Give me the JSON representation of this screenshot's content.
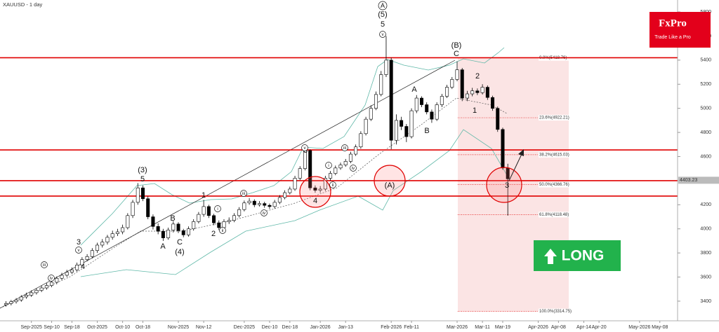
{
  "chart_data": {
    "type": "candlestick",
    "title": "XAUUSD - 1 day",
    "categories": [
      null,
      null,
      null,
      null,
      null,
      "Sep-2025",
      null,
      null,
      null,
      "Sep-10",
      null,
      null,
      null,
      "Sep-18",
      null,
      null,
      null,
      null,
      "Oct-2025",
      null,
      null,
      null,
      null,
      "Oct-10",
      null,
      null,
      null,
      "Oct-18",
      null,
      null,
      null,
      null,
      null,
      null,
      "Nov-2025",
      null,
      null,
      null,
      null,
      "Nov-12",
      null,
      null,
      null,
      null,
      null,
      null,
      null,
      "Dec-2025",
      null,
      null,
      null,
      null,
      "Dec-10",
      null,
      null,
      null,
      "Dec-18",
      null,
      null,
      null,
      null,
      null,
      "Jan-2026",
      null,
      null,
      null,
      null,
      "Jan-13",
      null,
      null,
      null,
      null,
      null,
      null,
      null,
      null,
      "Feb-2026",
      null,
      null,
      null,
      "Feb-11",
      null,
      null,
      null,
      null,
      null,
      null,
      null,
      null,
      "Mar-2026",
      null,
      null,
      null,
      null,
      "Mar-11",
      null,
      null,
      null,
      "Mar-19",
      null,
      null,
      null,
      null,
      null,
      null,
      "Apr-2026",
      null,
      null,
      null,
      "Apr-08",
      null,
      null,
      null,
      null,
      "Apr-14",
      null,
      null,
      "Apr-20",
      null,
      null,
      null,
      null,
      null,
      null,
      null,
      "May-2026",
      null,
      null,
      null,
      "May-08",
      null,
      null,
      null
    ],
    "open": [
      3370,
      3380,
      3395,
      3410,
      3435,
      3450,
      3470,
      3490,
      3510,
      3530,
      3557,
      3590,
      3615,
      3640,
      3660,
      3700,
      3745,
      3770,
      3820,
      3865,
      3890,
      3930,
      3960,
      3975,
      4010,
      4110,
      4220,
      4340,
      4250,
      4100,
      4020,
      3980,
      3925,
      3990,
      4040,
      3985,
      3950,
      4000,
      4060,
      4120,
      4185,
      4110,
      4050,
      4010,
      4060,
      4070,
      4110,
      4160,
      4215,
      4230,
      4200,
      4210,
      4195,
      4185,
      4220,
      4260,
      4300,
      4330,
      4420,
      4500,
      4650,
      4340,
      4320,
      4330,
      4420,
      4460,
      4505,
      4530,
      4560,
      4620,
      4680,
      4790,
      4910,
      5000,
      5115,
      5280,
      5400,
      4735,
      4900,
      4850,
      4765,
      4980,
      5085,
      5030,
      4970,
      4910,
      5030,
      5100,
      5175,
      5240,
      5320,
      5085,
      5120,
      5145,
      5130,
      5175,
      5090,
      5000,
      4825,
      4505,
      null,
      null,
      null,
      null,
      null,
      null,
      null,
      null,
      null,
      null,
      null,
      null,
      null,
      null,
      null,
      null,
      null,
      null,
      null,
      null,
      null,
      null,
      null,
      null,
      null,
      null,
      null,
      null,
      null,
      null,
      null,
      null,
      null
    ],
    "high": [
      3400,
      3410,
      3425,
      3450,
      3470,
      3490,
      3505,
      3530,
      3550,
      3575,
      3605,
      3635,
      3660,
      3680,
      3720,
      3765,
      3790,
      3840,
      3885,
      3915,
      3950,
      3985,
      4000,
      4035,
      4130,
      4240,
      4380,
      4360,
      4270,
      4120,
      4045,
      4000,
      4010,
      4065,
      4055,
      4000,
      4020,
      4080,
      4140,
      4240,
      4200,
      4125,
      4070,
      4080,
      4095,
      4130,
      4180,
      4235,
      4255,
      4245,
      4230,
      4225,
      4210,
      4240,
      4280,
      4320,
      4350,
      4440,
      4520,
      4670,
      4660,
      4360,
      4355,
      4440,
      4480,
      4525,
      4550,
      4580,
      4640,
      4700,
      4810,
      4930,
      5025,
      5140,
      5310,
      5600,
      5420,
      4950,
      4930,
      4870,
      5000,
      5110,
      5100,
      5050,
      4990,
      5050,
      5120,
      5195,
      5260,
      5390,
      5335,
      5145,
      5170,
      5165,
      5200,
      5190,
      5105,
      5015,
      4840,
      4540,
      null,
      null,
      null,
      null,
      null,
      null,
      null,
      null,
      null,
      null,
      null,
      null,
      null,
      null,
      null,
      null,
      null,
      null,
      null,
      null,
      null,
      null,
      null,
      null,
      null,
      null,
      null,
      null,
      null,
      null,
      null,
      null,
      null
    ],
    "low": [
      3355,
      3365,
      3380,
      3395,
      3420,
      3435,
      3455,
      3475,
      3495,
      3515,
      3540,
      3575,
      3600,
      3625,
      3645,
      3685,
      3730,
      3755,
      3800,
      3845,
      3870,
      3910,
      3940,
      3955,
      3995,
      4090,
      4200,
      4230,
      4080,
      3995,
      3955,
      3900,
      3910,
      3970,
      3965,
      3930,
      3935,
      3985,
      4045,
      4100,
      4090,
      4030,
      3990,
      3995,
      4040,
      4055,
      4095,
      4145,
      4200,
      4180,
      4185,
      4175,
      4165,
      4170,
      4205,
      4245,
      4285,
      4315,
      4405,
      4485,
      4320,
      4300,
      4300,
      4315,
      4400,
      4445,
      4490,
      4515,
      4545,
      4605,
      4665,
      4775,
      4895,
      4985,
      5100,
      5260,
      4660,
      4700,
      4820,
      4720,
      4750,
      4960,
      5010,
      4950,
      4880,
      4895,
      5010,
      5085,
      5160,
      5225,
      5060,
      5060,
      5100,
      5110,
      5115,
      5070,
      4980,
      4805,
      4490,
      4110,
      null,
      null,
      null,
      null,
      null,
      null,
      null,
      null,
      null,
      null,
      null,
      null,
      null,
      null,
      null,
      null,
      null,
      null,
      null,
      null,
      null,
      null,
      null,
      null,
      null,
      null,
      null,
      null,
      null,
      null,
      null,
      null,
      null
    ],
    "close": [
      3380,
      3395,
      3410,
      3435,
      3450,
      3470,
      3490,
      3510,
      3530,
      3557,
      3590,
      3615,
      3640,
      3660,
      3700,
      3745,
      3770,
      3820,
      3865,
      3890,
      3930,
      3960,
      3975,
      4010,
      4110,
      4220,
      4340,
      4250,
      4100,
      4020,
      3980,
      3925,
      3990,
      4040,
      3985,
      3950,
      4000,
      4060,
      4120,
      4185,
      4110,
      4050,
      4010,
      4060,
      4070,
      4110,
      4160,
      4215,
      4230,
      4200,
      4210,
      4195,
      4185,
      4220,
      4260,
      4300,
      4330,
      4420,
      4500,
      4650,
      4340,
      4320,
      4330,
      4420,
      4460,
      4505,
      4530,
      4560,
      4620,
      4680,
      4790,
      4910,
      5000,
      5115,
      5280,
      5400,
      4735,
      4900,
      4850,
      4765,
      4980,
      5085,
      5030,
      4970,
      4910,
      5030,
      5100,
      5175,
      5240,
      5320,
      5085,
      5120,
      5145,
      5130,
      5175,
      5090,
      5000,
      4825,
      4505,
      4415,
      null,
      null,
      null,
      null,
      null,
      null,
      null,
      null,
      null,
      null,
      null,
      null,
      null,
      null,
      null,
      null,
      null,
      null,
      null,
      null,
      null,
      null,
      null,
      null,
      null,
      null,
      null,
      null,
      null,
      null,
      null,
      null,
      null
    ],
    "up_color": "#ffffff",
    "down_color": "#000000",
    "ylim": [
      3237,
      5899
    ],
    "yticks": [
      3400,
      3600,
      3800,
      4000,
      4200,
      4400,
      4600,
      4800,
      5000,
      5200,
      5400,
      5600,
      5800
    ],
    "last_price": 4403.23,
    "levels": [
      5420,
      4655,
      4400,
      4272
    ],
    "level_color": "#e00000",
    "fibonacci": [
      {
        "label": "0.0%(5418.76)",
        "value": 5418.76
      },
      {
        "label": "23.6%(4922.21)",
        "value": 4922.21
      },
      {
        "label": "38.2%(4615.03)",
        "value": 4615.03
      },
      {
        "label": "50.0%(4366.76)",
        "value": 4366.76
      },
      {
        "label": "61.8%(4118.48)",
        "value": 4118.48
      },
      {
        "label": "100.0%(3314.75)",
        "value": 3314.75
      }
    ],
    "wave_labels": [
      "(3)",
      "5",
      "3",
      "4",
      "A",
      "B",
      "C",
      "(4)",
      "1",
      "2",
      "3",
      "4",
      "(A)",
      "(5)",
      "5",
      "(B)",
      "C",
      "A",
      "B",
      "2",
      "1",
      "3"
    ],
    "circled_labels": [
      "A",
      "v",
      "iii",
      "iv",
      "v",
      "i",
      "ii",
      "iii",
      "iv",
      "v",
      "i",
      "ii",
      "iii",
      "iv"
    ],
    "signal": "LONG",
    "logo": {
      "name": "FxPro",
      "tagline": "Trade Like a Pro"
    }
  }
}
